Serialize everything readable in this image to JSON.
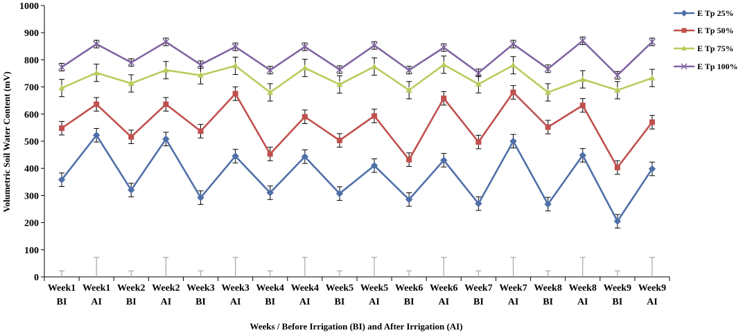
{
  "chart_data": {
    "type": "line",
    "title": "",
    "xlabel": "Weeks / Before Irrigation  (BI) and After Irrigation  (AI)",
    "ylabel": "Volumetric  Soil Water  Content  (mV)",
    "ylim": [
      0,
      1000
    ],
    "yticks": [
      "0",
      "100",
      "200",
      "300",
      "400",
      "500",
      "600",
      "700",
      "800",
      "900",
      "1000"
    ],
    "grid": false,
    "legend_position": "top-right",
    "categories": [
      {
        "week": "Week1",
        "phase": "BI"
      },
      {
        "week": "Week1",
        "phase": "AI"
      },
      {
        "week": "Week2",
        "phase": "BI"
      },
      {
        "week": "Week2",
        "phase": "AI"
      },
      {
        "week": "Week3",
        "phase": "BI"
      },
      {
        "week": "Week3",
        "phase": "AI"
      },
      {
        "week": "Week4",
        "phase": "BI"
      },
      {
        "week": "Week4",
        "phase": "AI"
      },
      {
        "week": "Week5",
        "phase": "BI"
      },
      {
        "week": "Week5",
        "phase": "AI"
      },
      {
        "week": "Week6",
        "phase": "BI"
      },
      {
        "week": "Week6",
        "phase": "AI"
      },
      {
        "week": "Week7",
        "phase": "BI"
      },
      {
        "week": "Week7",
        "phase": "AI"
      },
      {
        "week": "Week8",
        "phase": "BI"
      },
      {
        "week": "Week8",
        "phase": "AI"
      },
      {
        "week": "Week9",
        "phase": "BI"
      },
      {
        "week": "Week9",
        "phase": "AI"
      }
    ],
    "series": [
      {
        "name": "E Tp  25%",
        "color": "#4F6FA8",
        "marker": "diamond",
        "values": [
          358,
          522,
          320,
          508,
          292,
          445,
          310,
          443,
          307,
          410,
          285,
          430,
          270,
          500,
          268,
          448,
          205,
          398
        ],
        "errors": [
          25,
          25,
          25,
          25,
          25,
          25,
          25,
          25,
          25,
          25,
          25,
          25,
          25,
          25,
          25,
          25,
          25,
          25
        ]
      },
      {
        "name": "E Tp  50%",
        "color": "#C0504D",
        "marker": "square",
        "values": [
          548,
          636,
          516,
          636,
          537,
          675,
          453,
          590,
          503,
          593,
          432,
          658,
          497,
          680,
          552,
          632,
          403,
          570
        ],
        "errors": [
          25,
          25,
          25,
          25,
          25,
          25,
          25,
          25,
          25,
          25,
          25,
          25,
          25,
          25,
          25,
          25,
          25,
          25
        ]
      },
      {
        "name": "E Tp  75%",
        "color": "#B8CC5C",
        "marker": "triangle",
        "values": [
          696,
          752,
          713,
          762,
          743,
          778,
          680,
          770,
          709,
          775,
          688,
          782,
          710,
          780,
          680,
          728,
          688,
          733
        ],
        "errors": [
          32,
          32,
          32,
          32,
          32,
          32,
          32,
          32,
          32,
          32,
          32,
          32,
          32,
          32,
          32,
          32,
          32,
          32
        ]
      },
      {
        "name": "E Tp  100%",
        "color": "#8064A2",
        "marker": "x",
        "values": [
          773,
          858,
          790,
          866,
          782,
          848,
          762,
          848,
          764,
          853,
          762,
          845,
          752,
          858,
          767,
          870,
          743,
          866
        ],
        "errors": [
          14,
          14,
          14,
          14,
          14,
          14,
          14,
          14,
          14,
          14,
          14,
          14,
          14,
          14,
          14,
          14,
          14,
          14
        ]
      }
    ],
    "baseline_errors": [
      22,
      72,
      22,
      72,
      22,
      72,
      22,
      72,
      22,
      72,
      22,
      72,
      22,
      72,
      22,
      72,
      22,
      72
    ]
  }
}
